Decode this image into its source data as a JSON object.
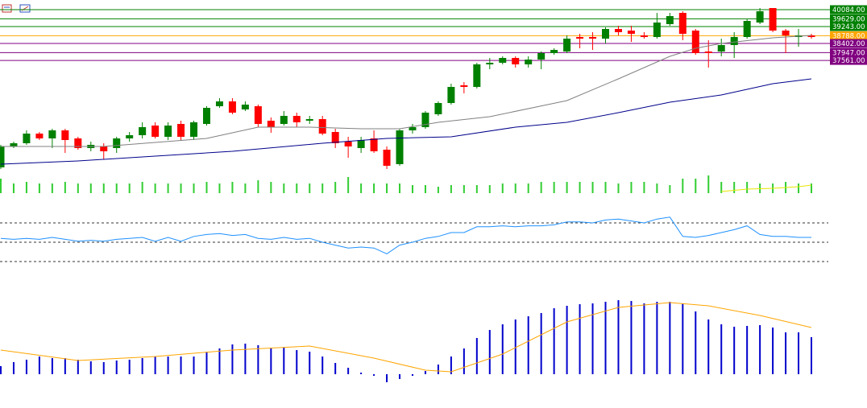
{
  "chart_data": [
    {
      "type": "candlestick",
      "ylim": [
        31964,
        40564
      ],
      "up_color": "#008000",
      "down_color": "#ff0000",
      "ohlc": [
        [
          32244,
          33364,
          32164,
          33284
        ],
        [
          33284,
          33524,
          33204,
          33444
        ],
        [
          33444,
          34084,
          33364,
          33924
        ],
        [
          33924,
          34004,
          33604,
          33684
        ],
        [
          33684,
          34164,
          33204,
          34084
        ],
        [
          34084,
          34164,
          32964,
          33604
        ],
        [
          33684,
          33764,
          33124,
          33204
        ],
        [
          33204,
          33524,
          33044,
          33364
        ],
        [
          33284,
          33444,
          32644,
          33044
        ],
        [
          33204,
          33764,
          32964,
          33684
        ],
        [
          33684,
          34004,
          33524,
          33844
        ],
        [
          33844,
          34484,
          33684,
          34244
        ],
        [
          34324,
          34484,
          33684,
          33764
        ],
        [
          33764,
          34484,
          33604,
          34324
        ],
        [
          34404,
          34564,
          33604,
          33764
        ],
        [
          33764,
          34564,
          33604,
          34484
        ],
        [
          34404,
          35284,
          34324,
          35204
        ],
        [
          35284,
          35684,
          35204,
          35524
        ],
        [
          35524,
          35684,
          34884,
          34964
        ],
        [
          35124,
          35524,
          35044,
          35364
        ],
        [
          35284,
          35364,
          34244,
          34404
        ],
        [
          34564,
          34724,
          33964,
          34244
        ],
        [
          34404,
          35044,
          34324,
          34804
        ],
        [
          34804,
          34964,
          34244,
          34484
        ],
        [
          34564,
          34804,
          34404,
          34644
        ],
        [
          34644,
          34804,
          33844,
          33924
        ],
        [
          34004,
          34164,
          33204,
          33444
        ],
        [
          33524,
          33764,
          32724,
          33284
        ],
        [
          33204,
          33764,
          32964,
          33604
        ],
        [
          33684,
          34084,
          32964,
          33044
        ],
        [
          33124,
          33284,
          32164,
          32324
        ],
        [
          32404,
          34164,
          32324,
          34084
        ],
        [
          34084,
          34404,
          33924,
          34244
        ],
        [
          34244,
          35044,
          34164,
          34964
        ],
        [
          34884,
          35524,
          34804,
          35444
        ],
        [
          35444,
          36404,
          35364,
          36244
        ],
        [
          36324,
          36484,
          35924,
          36244
        ],
        [
          36244,
          37444,
          36164,
          37364
        ],
        [
          37364,
          37684,
          37124,
          37444
        ],
        [
          37444,
          37764,
          37364,
          37684
        ],
        [
          37684,
          37764,
          37204,
          37364
        ],
        [
          37364,
          37764,
          37204,
          37604
        ],
        [
          37604,
          38004,
          37124,
          37924
        ],
        [
          37924,
          38164,
          37844,
          38084
        ],
        [
          38004,
          38804,
          37924,
          38644
        ],
        [
          38724,
          38884,
          38164,
          38644
        ],
        [
          38724,
          38964,
          38084,
          38644
        ],
        [
          38644,
          39204,
          38404,
          39124
        ],
        [
          39124,
          39284,
          38804,
          38964
        ],
        [
          39044,
          39284,
          38484,
          38884
        ],
        [
          38804,
          38964,
          38644,
          38724
        ],
        [
          38724,
          39924,
          38644,
          39444
        ],
        [
          39364,
          39924,
          39284,
          39764
        ],
        [
          39924,
          40004,
          38564,
          38884
        ],
        [
          39044,
          39124,
          37844,
          37924
        ],
        [
          38004,
          38564,
          37204,
          37924
        ],
        [
          38004,
          38644,
          37764,
          38324
        ],
        [
          38324,
          38964,
          37684,
          38724
        ],
        [
          38724,
          39604,
          38644,
          39524
        ],
        [
          39444,
          40164,
          39364,
          40004
        ],
        [
          40164,
          40164,
          38964,
          39044
        ],
        [
          39044,
          39124,
          37924,
          38804
        ],
        [
          38724,
          39124,
          38244,
          38804
        ],
        [
          38804,
          38884,
          38644,
          38724
        ]
      ],
      "lines": [
        {
          "color": "#808080",
          "x": [
            0,
            8,
            16,
            20,
            24,
            28,
            31,
            34,
            38,
            44,
            48,
            52,
            54,
            56,
            60,
            63
          ],
          "values": [
            33284,
            33284,
            33684,
            34244,
            34244,
            34164,
            34164,
            34484,
            34764,
            35564,
            36644,
            37764,
            38164,
            38404,
            38684,
            38804
          ]
        },
        {
          "color": "#00008b",
          "x": [
            0,
            6,
            12,
            18,
            25,
            30,
            35,
            40,
            44,
            48,
            52,
            56,
            60,
            63
          ],
          "values": [
            32404,
            32564,
            32804,
            33044,
            33444,
            33684,
            33764,
            34244,
            34484,
            34964,
            35484,
            35844,
            36404,
            36644
          ]
        }
      ],
      "levels": [
        {
          "value": 40084,
          "label": "40084.00",
          "color": "#008000"
        },
        {
          "value": 39629,
          "label": "39629.00",
          "color": "#008000"
        },
        {
          "value": 39243,
          "label": "39243.00",
          "color": "#008000"
        },
        {
          "value": 38788,
          "label": "38788.00",
          "color": "#ffa500"
        },
        {
          "value": 38402,
          "label": "38402.00",
          "color": "#800080"
        },
        {
          "value": 37947,
          "label": "37947.00",
          "color": "#800080"
        },
        {
          "value": 37561,
          "label": "37561.00",
          "color": "#800080"
        }
      ]
    },
    {
      "type": "bar",
      "ylim": [
        0,
        30
      ],
      "color": "#32cd32",
      "values": [
        18,
        12,
        14,
        12,
        12,
        14,
        12,
        12,
        12,
        12,
        12,
        14,
        12,
        12,
        12,
        12,
        14,
        12,
        14,
        12,
        16,
        14,
        12,
        12,
        12,
        12,
        14,
        20,
        12,
        12,
        12,
        12,
        10,
        10,
        8,
        10,
        10,
        10,
        10,
        12,
        12,
        12,
        14,
        14,
        14,
        14,
        14,
        14,
        12,
        14,
        14,
        12,
        10,
        18,
        18,
        22,
        14,
        14,
        14,
        12,
        12,
        14,
        12,
        12
      ],
      "lines": [
        {
          "color": "#e6e600",
          "x": [
            56,
            58,
            60,
            62,
            63
          ],
          "values": [
            2,
            5,
            6,
            8,
            10
          ]
        }
      ]
    },
    {
      "type": "line",
      "ylim": [
        10,
        90
      ],
      "color": "#1e90ff",
      "levels": [
        70,
        50,
        30
      ],
      "values": [
        54,
        53,
        54,
        53,
        55,
        53,
        51,
        52,
        51,
        53,
        54,
        55,
        51,
        55,
        51,
        56,
        58,
        59,
        57,
        58,
        54,
        53,
        55,
        53,
        54,
        50,
        47,
        44,
        45,
        44,
        38,
        47,
        50,
        54,
        56,
        60,
        60,
        66,
        66,
        67,
        66,
        67,
        67,
        68,
        71,
        71,
        70,
        73,
        74,
        72,
        70,
        74,
        76,
        56,
        55,
        57,
        60,
        63,
        67,
        58,
        56,
        56,
        55,
        55
      ]
    },
    {
      "type": "bar",
      "ylim": [
        -20,
        110
      ],
      "color": "#0000cd",
      "values": [
        10,
        15,
        18,
        22,
        20,
        20,
        18,
        16,
        15,
        17,
        18,
        20,
        22,
        22,
        22,
        22,
        28,
        32,
        37,
        38,
        36,
        32,
        33,
        30,
        28,
        22,
        14,
        8,
        2,
        -2,
        -10,
        -6,
        -2,
        4,
        12,
        22,
        32,
        45,
        55,
        62,
        68,
        72,
        76,
        82,
        85,
        87,
        88,
        90,
        92,
        91,
        88,
        90,
        90,
        88,
        78,
        68,
        62,
        59,
        60,
        61,
        58,
        52,
        52,
        46
      ],
      "lines": [
        {
          "color": "#ffa500",
          "x": [
            0,
            6,
            12,
            18,
            24,
            29,
            33,
            35,
            39,
            44,
            48,
            52,
            55,
            59,
            63
          ],
          "values": [
            30,
            17,
            22,
            30,
            35,
            20,
            5,
            3,
            25,
            65,
            83,
            89,
            85,
            73,
            58
          ]
        }
      ]
    }
  ]
}
